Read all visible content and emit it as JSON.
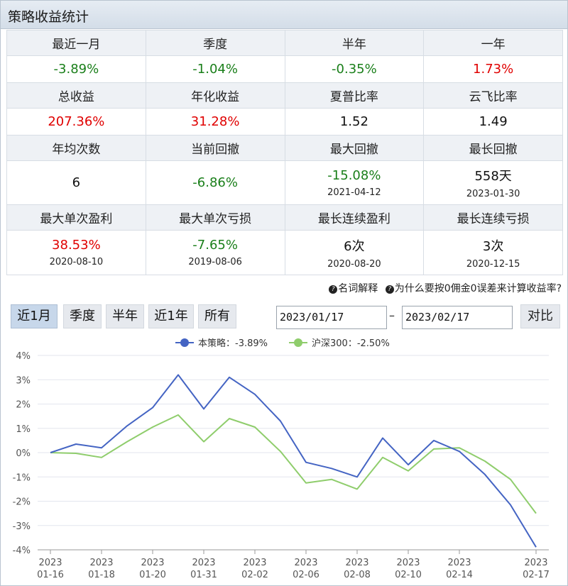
{
  "panel": {
    "title": "策略收益统计"
  },
  "stats": {
    "row1_headers": [
      "最近一月",
      "季度",
      "半年",
      "一年"
    ],
    "row1_values": [
      {
        "v": "-3.89%",
        "c": "green"
      },
      {
        "v": "-1.04%",
        "c": "green"
      },
      {
        "v": "-0.35%",
        "c": "green"
      },
      {
        "v": "1.73%",
        "c": "red"
      }
    ],
    "row2_headers": [
      "总收益",
      "年化收益",
      "夏普比率",
      "云飞比率"
    ],
    "row2_values": [
      {
        "v": "207.36%",
        "c": "red"
      },
      {
        "v": "31.28%",
        "c": "red"
      },
      {
        "v": "1.52",
        "c": "black"
      },
      {
        "v": "1.49",
        "c": "black"
      }
    ],
    "row3_headers": [
      "年均次数",
      "当前回撤",
      "最大回撤",
      "最长回撤"
    ],
    "row3_values": [
      {
        "v": "6",
        "c": "black",
        "d": ""
      },
      {
        "v": "-6.86%",
        "c": "green",
        "d": ""
      },
      {
        "v": "-15.08%",
        "c": "green",
        "d": "2021-04-12"
      },
      {
        "v": "558天",
        "c": "black",
        "d": "2023-01-30"
      }
    ],
    "row4_headers": [
      "最大单次盈利",
      "最大单次亏损",
      "最长连续盈利",
      "最长连续亏损"
    ],
    "row4_values": [
      {
        "v": "38.53%",
        "c": "red",
        "d": "2020-08-10"
      },
      {
        "v": "-7.65%",
        "c": "green",
        "d": "2019-08-06"
      },
      {
        "v": "6次",
        "c": "black",
        "d": "2020-08-20"
      },
      {
        "v": "3次",
        "c": "black",
        "d": "2020-12-15"
      }
    ]
  },
  "help": {
    "glossary": "名词解释",
    "why_zero_commission": "为什么要按0佣金0误差来计算收益率?"
  },
  "toolbar": {
    "periods": [
      "近1月",
      "季度",
      "半年",
      "近1年",
      "所有"
    ],
    "active_period": "近1月",
    "start_date": "2023/01/17",
    "end_date": "2023/02/17",
    "dash": "–",
    "compare": "对比"
  },
  "colors": {
    "strategy": "#4464c3",
    "benchmark": "#8fcd6c",
    "red": "#e00000",
    "green": "#1a7f1a"
  },
  "chart_data": {
    "type": "line",
    "legend": [
      {
        "name": "本策略",
        "label": "本策略：-3.89%"
      },
      {
        "name": "沪深300",
        "label": "沪深300：-2.50%"
      }
    ],
    "y_ticks": [
      "4%",
      "3%",
      "2%",
      "1%",
      "0%",
      "-1%",
      "-2%",
      "-3%",
      "-4%"
    ],
    "ylim": [
      -4,
      4
    ],
    "x_tick_labels": [
      {
        "year": "2023",
        "date": "01-16"
      },
      {
        "year": "2023",
        "date": "01-18"
      },
      {
        "year": "2023",
        "date": "01-20"
      },
      {
        "year": "2023",
        "date": "01-31"
      },
      {
        "year": "2023",
        "date": "02-02"
      },
      {
        "year": "2023",
        "date": "02-06"
      },
      {
        "year": "2023",
        "date": "02-08"
      },
      {
        "year": "2023",
        "date": "02-10"
      },
      {
        "year": "2023",
        "date": "02-14"
      },
      {
        "year": "2023",
        "date": "02-17"
      }
    ],
    "x_tick_positions": [
      0,
      2,
      4,
      6,
      8,
      10,
      12,
      14,
      16,
      19
    ],
    "series": [
      {
        "name": "本策略",
        "values": [
          0.0,
          0.35,
          0.2,
          1.1,
          1.85,
          3.2,
          1.8,
          3.1,
          2.4,
          1.3,
          -0.4,
          -0.65,
          -1.0,
          0.6,
          -0.5,
          0.5,
          0.05,
          -0.9,
          -2.15,
          -3.89
        ]
      },
      {
        "name": "沪深300",
        "values": [
          0.0,
          -0.03,
          -0.2,
          0.45,
          1.05,
          1.55,
          0.45,
          1.4,
          1.05,
          0.05,
          -1.25,
          -1.1,
          -1.5,
          -0.2,
          -0.75,
          0.15,
          0.2,
          -0.35,
          -1.1,
          -2.5
        ]
      }
    ]
  }
}
